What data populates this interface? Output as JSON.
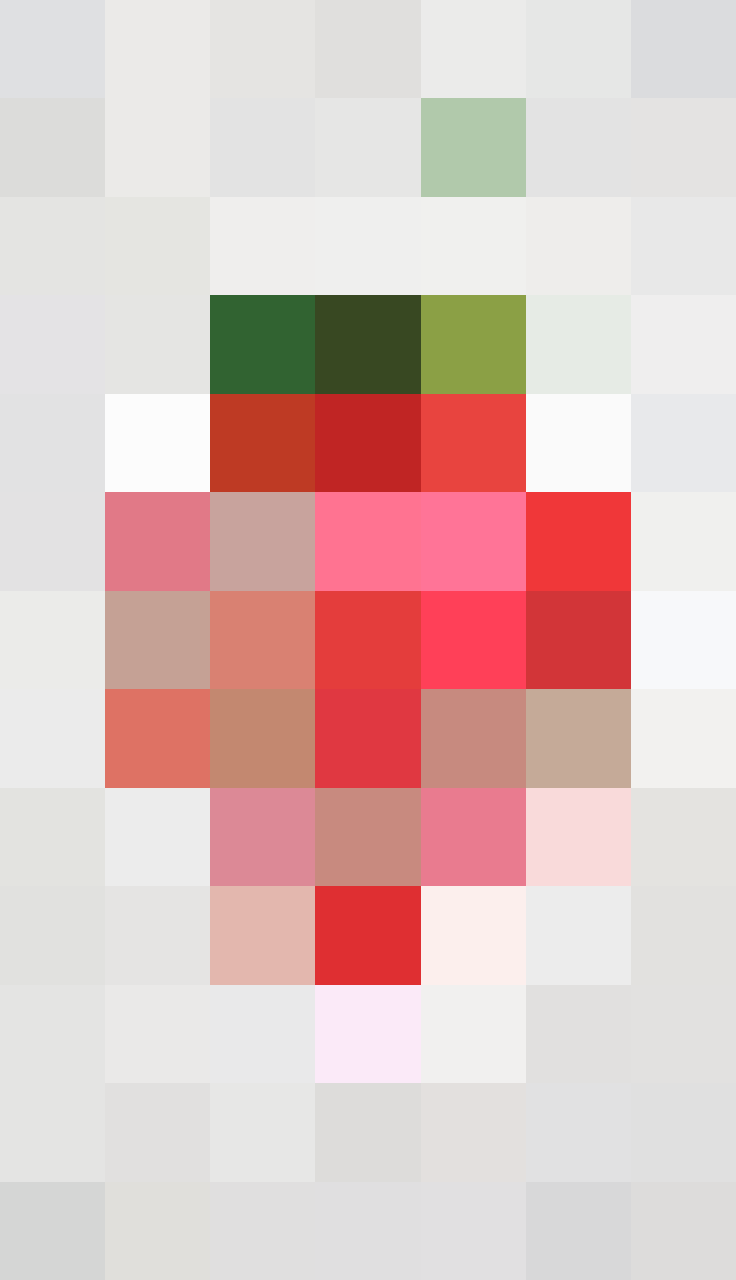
{
  "image": {
    "subject": "strawberry",
    "style": "pixelated",
    "grid": {
      "columns": 7,
      "rows": 13
    },
    "colors": [
      [
        "#dfe0e2",
        "#ebeae8",
        "#e5e4e2",
        "#e0dfdd",
        "#ebebea",
        "#e6e7e6",
        "#dbdcde"
      ],
      [
        "#dcdcda",
        "#ebeae8",
        "#e3e3e3",
        "#e6e6e5",
        "#b1c9ab",
        "#e3e3e3",
        "#e4e3e2"
      ],
      [
        "#e4e4e2",
        "#e5e5e1",
        "#efeeed",
        "#efefee",
        "#f0f0ee",
        "#eeedeb",
        "#e8e8e8"
      ],
      [
        "#e4e3e5",
        "#e5e5e3",
        "#316331",
        "#384822",
        "#8ba045",
        "#e6ebe5",
        "#efeeee"
      ],
      [
        "#e2e2e3",
        "#fcfcfc",
        "#be3a24",
        "#c02524",
        "#e8443f",
        "#fafafa",
        "#e8e9eb"
      ],
      [
        "#e3e2e3",
        "#e17987",
        "#c8a39d",
        "#ff7391",
        "#ff7497",
        "#f03739",
        "#f0f0ee"
      ],
      [
        "#ebebe9",
        "#c5a195",
        "#d98172",
        "#e43d3c",
        "#ff4058",
        "#d23538",
        "#f7f8fa"
      ],
      [
        "#ebebeb",
        "#de7264",
        "#c38870",
        "#e03841",
        "#c78a7f",
        "#c5aa98",
        "#f2f1ef"
      ],
      [
        "#e3e3e0",
        "#ececec",
        "#dc8996",
        "#c88a7f",
        "#e97b8f",
        "#f9dada",
        "#e4e3e0"
      ],
      [
        "#e1e1df",
        "#e5e4e3",
        "#e3b7ae",
        "#df2f32",
        "#fcefed",
        "#ececec",
        "#e2e1df"
      ],
      [
        "#e4e4e3",
        "#eae9e8",
        "#e9e9ea",
        "#fbeaf8",
        "#f1f0ef",
        "#e1e0df",
        "#e2e1e0"
      ],
      [
        "#e4e4e3",
        "#e1e0df",
        "#e7e7e6",
        "#dddcda",
        "#e3e0de",
        "#e1e1e2",
        "#e0e0e0"
      ],
      [
        "#d5d6d5",
        "#e0dfdb",
        "#e0dfdf",
        "#e0dfe0",
        "#e1e0e1",
        "#d8d8d9",
        "#dddcdb"
      ]
    ]
  }
}
